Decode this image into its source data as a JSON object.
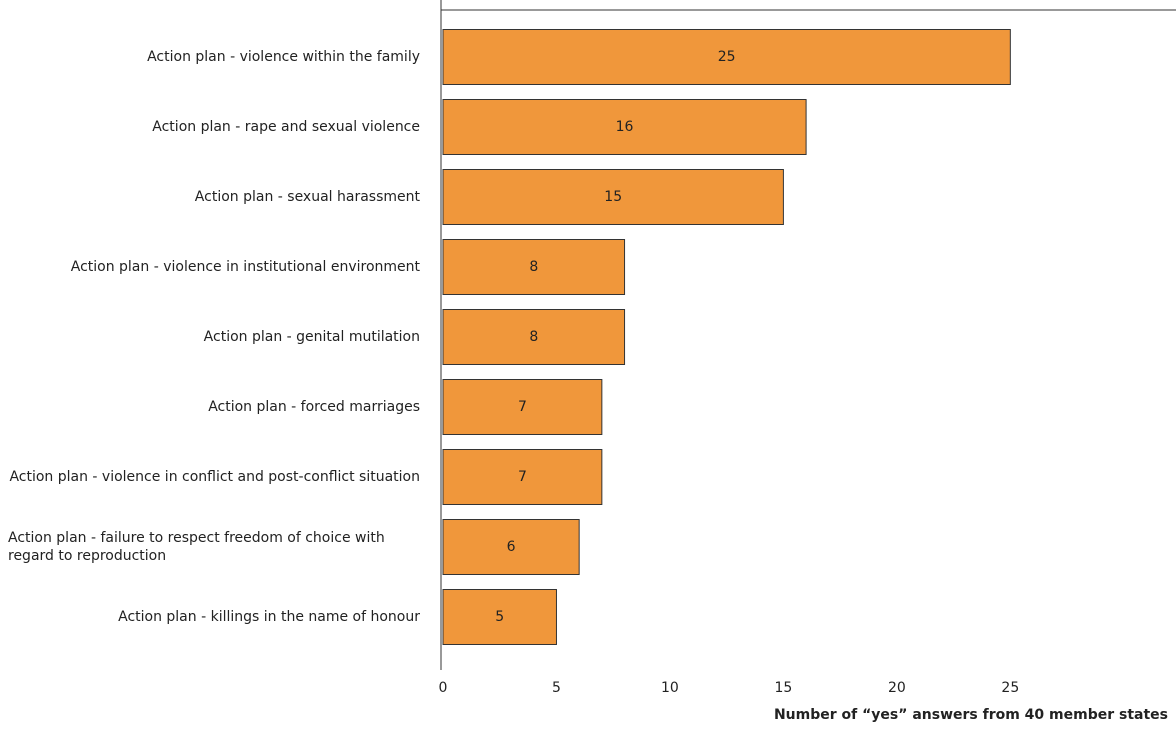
{
  "chart_data": {
    "type": "bar",
    "orientation": "horizontal",
    "categories": [
      "Action plan - violence within the family",
      "Action plan - rape and sexual violence",
      "Action plan - sexual harassment",
      "Action plan - violence in institutional environment",
      "Action plan - genital mutilation",
      "Action plan - forced marriages",
      "Action plan - violence in conflict and post-conflict situation",
      "Action plan - failure to respect freedom of choice with regard to reproduction",
      "Action plan - killings in the name of honour"
    ],
    "values": [
      25,
      16,
      15,
      8,
      8,
      7,
      7,
      6,
      5
    ],
    "color": "#f0973b",
    "xlim": [
      0,
      32.3
    ],
    "xticks": [
      0,
      5,
      10,
      15,
      20,
      25
    ],
    "xlabel": "Number of “yes” answers from 40 member states"
  }
}
